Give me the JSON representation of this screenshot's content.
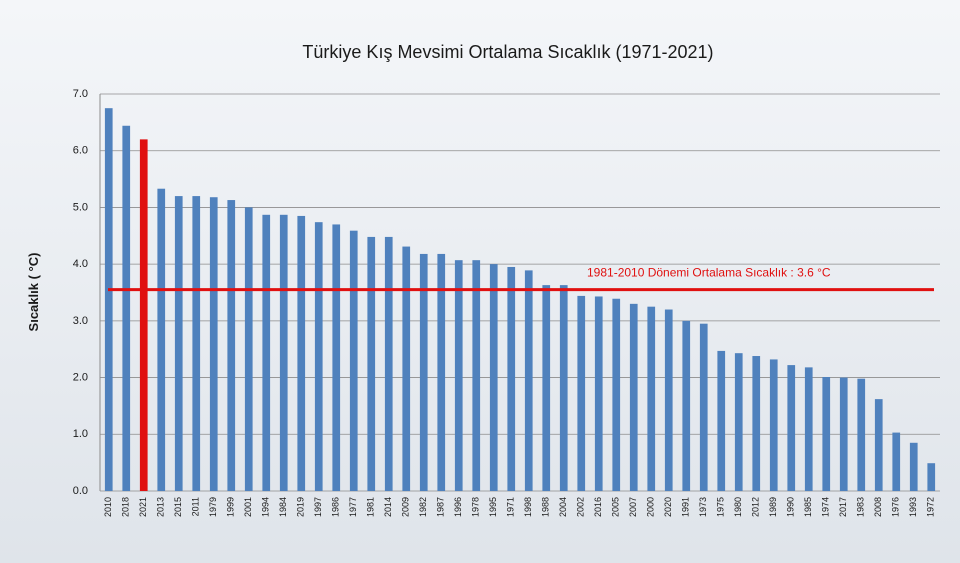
{
  "chart_data": {
    "type": "bar",
    "title": "Türkiye Kış Mevsimi Ortalama Sıcaklık (1971-2021)",
    "y_label": "Sıcaklık ( °C)",
    "categories": [
      "2010",
      "2018",
      "2021",
      "2013",
      "2015",
      "2011",
      "1979",
      "1999",
      "2001",
      "1994",
      "1984",
      "2019",
      "1997",
      "1986",
      "1977",
      "1981",
      "2014",
      "2009",
      "1982",
      "1987",
      "1996",
      "1978",
      "1995",
      "1971",
      "1998",
      "1988",
      "2004",
      "2002",
      "2016",
      "2005",
      "2007",
      "2000",
      "2020",
      "1991",
      "1973",
      "1975",
      "1980",
      "2012",
      "1989",
      "1990",
      "1985",
      "1974",
      "2017",
      "1983",
      "2008",
      "1976",
      "1993",
      "1972"
    ],
    "values": [
      6.75,
      6.44,
      6.2,
      5.33,
      5.2,
      5.2,
      5.18,
      5.13,
      5.0,
      4.87,
      4.87,
      4.85,
      4.74,
      4.7,
      4.59,
      4.48,
      4.48,
      4.31,
      4.18,
      4.18,
      4.07,
      4.07,
      4.0,
      3.95,
      3.89,
      3.63,
      3.63,
      3.44,
      3.43,
      3.39,
      3.3,
      3.25,
      3.2,
      3.0,
      2.95,
      2.47,
      2.43,
      2.38,
      2.32,
      2.22,
      2.18,
      2.01,
      2.0,
      1.98,
      1.62,
      1.03,
      0.85,
      0.49
    ],
    "colors": [
      "#4f81bd",
      "#4f81bd",
      "#e01010",
      "#4f81bd",
      "#4f81bd",
      "#4f81bd",
      "#4f81bd",
      "#4f81bd",
      "#4f81bd",
      "#4f81bd",
      "#4f81bd",
      "#4f81bd",
      "#4f81bd",
      "#4f81bd",
      "#4f81bd",
      "#4f81bd",
      "#4f81bd",
      "#4f81bd",
      "#4f81bd",
      "#4f81bd",
      "#4f81bd",
      "#4f81bd",
      "#4f81bd",
      "#4f81bd",
      "#4f81bd",
      "#4f81bd",
      "#4f81bd",
      "#4f81bd",
      "#4f81bd",
      "#4f81bd",
      "#4f81bd",
      "#4f81bd",
      "#4f81bd",
      "#4f81bd",
      "#4f81bd",
      "#4f81bd",
      "#4f81bd",
      "#4f81bd",
      "#4f81bd",
      "#4f81bd",
      "#4f81bd",
      "#4f81bd",
      "#4f81bd",
      "#4f81bd",
      "#4f81bd",
      "#4f81bd",
      "#4f81bd",
      "#4f81bd"
    ],
    "reference_line": {
      "value": 3.55,
      "label": "1981-2010  Dönemi  Ortalama Sıcaklık : 3.6 °C",
      "color": "#e01010"
    },
    "ylim": [
      0,
      7
    ],
    "yticks": [
      {
        "value": 0,
        "label": "0.0"
      },
      {
        "value": 1,
        "label": "1.0"
      },
      {
        "value": 2,
        "label": "2.0"
      },
      {
        "value": 3,
        "label": "3.0"
      },
      {
        "value": 4,
        "label": "4.0"
      },
      {
        "value": 5,
        "label": "5.0"
      },
      {
        "value": 6,
        "label": "6.0"
      },
      {
        "value": 7,
        "label": "7.0"
      }
    ],
    "grid": true
  }
}
